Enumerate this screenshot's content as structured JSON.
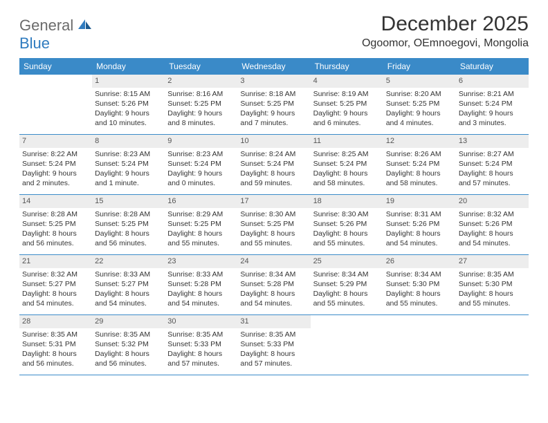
{
  "logo": {
    "word1": "General",
    "word2": "Blue"
  },
  "title": "December 2025",
  "location": "Ogoomor, OEmnoegovi, Mongolia",
  "colors": {
    "header_bar": "#3a8ac8",
    "daynum_bg": "#ededed",
    "row_border": "#3a8ac8",
    "logo_gray": "#6b6b6b",
    "logo_blue": "#2f7bbf"
  },
  "dows": [
    "Sunday",
    "Monday",
    "Tuesday",
    "Wednesday",
    "Thursday",
    "Friday",
    "Saturday"
  ],
  "weeks": [
    [
      null,
      {
        "n": "1",
        "sr": "Sunrise: 8:15 AM",
        "ss": "Sunset: 5:26 PM",
        "dl": "Daylight: 9 hours and 10 minutes."
      },
      {
        "n": "2",
        "sr": "Sunrise: 8:16 AM",
        "ss": "Sunset: 5:25 PM",
        "dl": "Daylight: 9 hours and 8 minutes."
      },
      {
        "n": "3",
        "sr": "Sunrise: 8:18 AM",
        "ss": "Sunset: 5:25 PM",
        "dl": "Daylight: 9 hours and 7 minutes."
      },
      {
        "n": "4",
        "sr": "Sunrise: 8:19 AM",
        "ss": "Sunset: 5:25 PM",
        "dl": "Daylight: 9 hours and 6 minutes."
      },
      {
        "n": "5",
        "sr": "Sunrise: 8:20 AM",
        "ss": "Sunset: 5:25 PM",
        "dl": "Daylight: 9 hours and 4 minutes."
      },
      {
        "n": "6",
        "sr": "Sunrise: 8:21 AM",
        "ss": "Sunset: 5:24 PM",
        "dl": "Daylight: 9 hours and 3 minutes."
      }
    ],
    [
      {
        "n": "7",
        "sr": "Sunrise: 8:22 AM",
        "ss": "Sunset: 5:24 PM",
        "dl": "Daylight: 9 hours and 2 minutes."
      },
      {
        "n": "8",
        "sr": "Sunrise: 8:23 AM",
        "ss": "Sunset: 5:24 PM",
        "dl": "Daylight: 9 hours and 1 minute."
      },
      {
        "n": "9",
        "sr": "Sunrise: 8:23 AM",
        "ss": "Sunset: 5:24 PM",
        "dl": "Daylight: 9 hours and 0 minutes."
      },
      {
        "n": "10",
        "sr": "Sunrise: 8:24 AM",
        "ss": "Sunset: 5:24 PM",
        "dl": "Daylight: 8 hours and 59 minutes."
      },
      {
        "n": "11",
        "sr": "Sunrise: 8:25 AM",
        "ss": "Sunset: 5:24 PM",
        "dl": "Daylight: 8 hours and 58 minutes."
      },
      {
        "n": "12",
        "sr": "Sunrise: 8:26 AM",
        "ss": "Sunset: 5:24 PM",
        "dl": "Daylight: 8 hours and 58 minutes."
      },
      {
        "n": "13",
        "sr": "Sunrise: 8:27 AM",
        "ss": "Sunset: 5:24 PM",
        "dl": "Daylight: 8 hours and 57 minutes."
      }
    ],
    [
      {
        "n": "14",
        "sr": "Sunrise: 8:28 AM",
        "ss": "Sunset: 5:25 PM",
        "dl": "Daylight: 8 hours and 56 minutes."
      },
      {
        "n": "15",
        "sr": "Sunrise: 8:28 AM",
        "ss": "Sunset: 5:25 PM",
        "dl": "Daylight: 8 hours and 56 minutes."
      },
      {
        "n": "16",
        "sr": "Sunrise: 8:29 AM",
        "ss": "Sunset: 5:25 PM",
        "dl": "Daylight: 8 hours and 55 minutes."
      },
      {
        "n": "17",
        "sr": "Sunrise: 8:30 AM",
        "ss": "Sunset: 5:25 PM",
        "dl": "Daylight: 8 hours and 55 minutes."
      },
      {
        "n": "18",
        "sr": "Sunrise: 8:30 AM",
        "ss": "Sunset: 5:26 PM",
        "dl": "Daylight: 8 hours and 55 minutes."
      },
      {
        "n": "19",
        "sr": "Sunrise: 8:31 AM",
        "ss": "Sunset: 5:26 PM",
        "dl": "Daylight: 8 hours and 54 minutes."
      },
      {
        "n": "20",
        "sr": "Sunrise: 8:32 AM",
        "ss": "Sunset: 5:26 PM",
        "dl": "Daylight: 8 hours and 54 minutes."
      }
    ],
    [
      {
        "n": "21",
        "sr": "Sunrise: 8:32 AM",
        "ss": "Sunset: 5:27 PM",
        "dl": "Daylight: 8 hours and 54 minutes."
      },
      {
        "n": "22",
        "sr": "Sunrise: 8:33 AM",
        "ss": "Sunset: 5:27 PM",
        "dl": "Daylight: 8 hours and 54 minutes."
      },
      {
        "n": "23",
        "sr": "Sunrise: 8:33 AM",
        "ss": "Sunset: 5:28 PM",
        "dl": "Daylight: 8 hours and 54 minutes."
      },
      {
        "n": "24",
        "sr": "Sunrise: 8:34 AM",
        "ss": "Sunset: 5:28 PM",
        "dl": "Daylight: 8 hours and 54 minutes."
      },
      {
        "n": "25",
        "sr": "Sunrise: 8:34 AM",
        "ss": "Sunset: 5:29 PM",
        "dl": "Daylight: 8 hours and 55 minutes."
      },
      {
        "n": "26",
        "sr": "Sunrise: 8:34 AM",
        "ss": "Sunset: 5:30 PM",
        "dl": "Daylight: 8 hours and 55 minutes."
      },
      {
        "n": "27",
        "sr": "Sunrise: 8:35 AM",
        "ss": "Sunset: 5:30 PM",
        "dl": "Daylight: 8 hours and 55 minutes."
      }
    ],
    [
      {
        "n": "28",
        "sr": "Sunrise: 8:35 AM",
        "ss": "Sunset: 5:31 PM",
        "dl": "Daylight: 8 hours and 56 minutes."
      },
      {
        "n": "29",
        "sr": "Sunrise: 8:35 AM",
        "ss": "Sunset: 5:32 PM",
        "dl": "Daylight: 8 hours and 56 minutes."
      },
      {
        "n": "30",
        "sr": "Sunrise: 8:35 AM",
        "ss": "Sunset: 5:33 PM",
        "dl": "Daylight: 8 hours and 57 minutes."
      },
      {
        "n": "31",
        "sr": "Sunrise: 8:35 AM",
        "ss": "Sunset: 5:33 PM",
        "dl": "Daylight: 8 hours and 57 minutes."
      },
      null,
      null,
      null
    ]
  ]
}
